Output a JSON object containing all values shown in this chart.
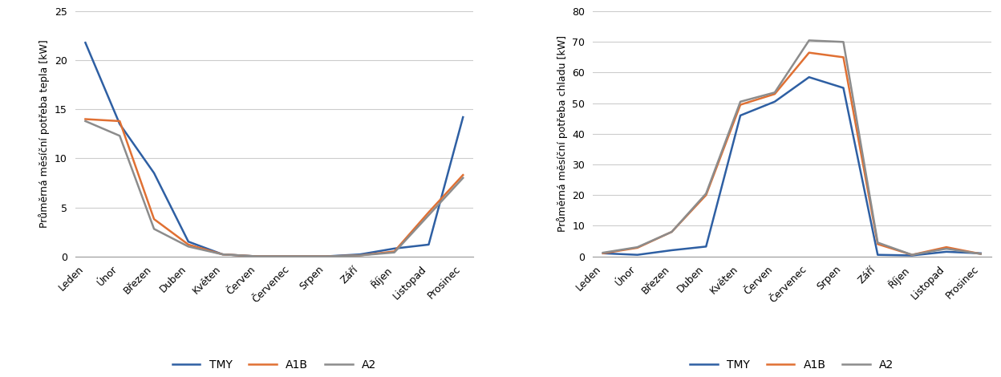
{
  "months": [
    "Leden",
    "Únor",
    "Březen",
    "Duben",
    "Květen",
    "Červen",
    "Červenec",
    "Srpen",
    "Září",
    "Říjen",
    "Listopad",
    "Prosinec"
  ],
  "heating": {
    "TMY": [
      21.8,
      13.5,
      8.5,
      1.5,
      0.2,
      0.0,
      0.0,
      0.0,
      0.2,
      0.8,
      1.2,
      14.2
    ],
    "A1B": [
      14.0,
      13.8,
      3.8,
      1.2,
      0.2,
      0.0,
      0.0,
      0.0,
      0.1,
      0.5,
      4.5,
      8.3
    ],
    "A2": [
      13.8,
      12.3,
      2.8,
      1.0,
      0.2,
      0.0,
      0.0,
      0.0,
      0.1,
      0.4,
      4.2,
      8.0
    ]
  },
  "cooling": {
    "TMY": [
      1.0,
      0.5,
      2.0,
      3.2,
      46.0,
      50.5,
      58.5,
      55.0,
      0.5,
      0.3,
      1.5,
      1.0
    ],
    "A1B": [
      1.0,
      2.8,
      8.0,
      20.0,
      49.5,
      53.0,
      66.5,
      65.0,
      4.0,
      0.5,
      3.0,
      0.8
    ],
    "A2": [
      1.2,
      3.0,
      8.0,
      20.5,
      50.5,
      53.5,
      70.5,
      70.0,
      4.5,
      0.5,
      2.5,
      0.8
    ]
  },
  "colors": {
    "TMY": "#2E5FA3",
    "A1B": "#E07033",
    "A2": "#8C8C8C"
  },
  "heating_ylabel": "Průměrná měsíční potřeba tepla [kW]",
  "cooling_ylabel": "Průměrná měsíční potřeba chladu [kW]",
  "heating_ylim": [
    0,
    25
  ],
  "heating_yticks": [
    0,
    5,
    10,
    15,
    20,
    25
  ],
  "cooling_ylim": [
    0,
    80
  ],
  "cooling_yticks": [
    0,
    10,
    20,
    30,
    40,
    50,
    60,
    70,
    80
  ],
  "linewidth": 1.8,
  "tick_fontsize": 9,
  "ylabel_fontsize": 9,
  "legend_fontsize": 10
}
